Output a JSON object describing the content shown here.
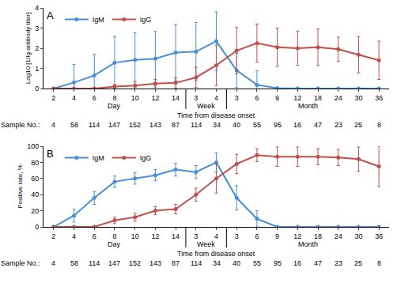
{
  "chart_data": [
    {
      "type": "line",
      "title": "A",
      "categories": [
        "2",
        "4",
        "6",
        "8",
        "10",
        "12",
        "14",
        "3",
        "4",
        "3",
        "6",
        "9",
        "12",
        "18",
        "24",
        "30",
        "36"
      ],
      "category_groups": [
        "Day",
        "Day",
        "Day",
        "Day",
        "Day",
        "Day",
        "Day",
        "Week",
        "Week",
        "Month",
        "Month",
        "Month",
        "Month",
        "Month",
        "Month",
        "Month",
        "Month"
      ],
      "x_label": "Time from disease onset",
      "y_label": "Log10 [1/Ig antibody titer]",
      "ylim": [
        0,
        4
      ],
      "yticks": [
        0,
        1,
        2,
        3,
        4
      ],
      "grid": false,
      "legend": "upper left",
      "marker": "circle",
      "line_style": "solid",
      "sample_label": "Sample No.:",
      "sample_sizes": [
        4,
        58,
        114,
        147,
        152,
        143,
        87,
        114,
        34,
        40,
        55,
        95,
        16,
        47,
        23,
        25,
        8
      ],
      "series": [
        {
          "name": "IgM",
          "color": "#4a8fd4",
          "values": [
            0,
            0.3,
            0.65,
            1.28,
            1.42,
            1.48,
            1.78,
            1.83,
            2.35,
            0.9,
            0.18,
            0.02,
            0,
            0,
            0,
            0,
            0
          ],
          "error": [
            0,
            0.9,
            1.05,
            1.3,
            1.35,
            1.35,
            1.4,
            1.45,
            1.45,
            0.85,
            0.7,
            0,
            0,
            0,
            0,
            0,
            0
          ]
        },
        {
          "name": "IgG",
          "color": "#c0504d",
          "values": [
            0,
            0,
            0,
            0.1,
            0.15,
            0.25,
            0.28,
            0.55,
            1.15,
            1.88,
            2.25,
            2.05,
            2.0,
            2.05,
            1.95,
            1.68,
            1.4
          ],
          "error": [
            0,
            0,
            0,
            0.1,
            0.2,
            0.2,
            0.25,
            0.5,
            1.0,
            1.15,
            0.95,
            0.95,
            0.85,
            0.9,
            0.6,
            0.9,
            0.95
          ]
        }
      ]
    },
    {
      "type": "line",
      "title": "B",
      "categories": [
        "2",
        "4",
        "6",
        "8",
        "10",
        "12",
        "14",
        "3",
        "4",
        "3",
        "6",
        "9",
        "12",
        "18",
        "24",
        "30",
        "36"
      ],
      "category_groups": [
        "Day",
        "Day",
        "Day",
        "Day",
        "Day",
        "Day",
        "Day",
        "Week",
        "Week",
        "Month",
        "Month",
        "Month",
        "Month",
        "Month",
        "Month",
        "Month",
        "Month"
      ],
      "x_label": "Time from disease onset",
      "y_label": "Positive rate, %",
      "ylim": [
        0,
        100
      ],
      "yticks": [
        0,
        20,
        40,
        60,
        80,
        100
      ],
      "grid": false,
      "legend": "upper left",
      "marker": "circle",
      "line_style": "solid",
      "sample_label": "Sample No.:",
      "sample_sizes": [
        4,
        58,
        114,
        147,
        152,
        143,
        87,
        114,
        34,
        40,
        55,
        95,
        16,
        47,
        23,
        25,
        8
      ],
      "series": [
        {
          "name": "IgM",
          "color": "#4a8fd4",
          "values": [
            0,
            14,
            36,
            56,
            60,
            64,
            71,
            68,
            80,
            36,
            10,
            0,
            0,
            0,
            0,
            0,
            0
          ],
          "error": [
            0,
            8,
            8,
            7,
            7,
            7,
            8,
            8,
            12,
            15,
            10,
            0,
            0,
            0,
            0,
            0,
            0
          ]
        },
        {
          "name": "IgG",
          "color": "#c0504d",
          "values": [
            0,
            0,
            0,
            8,
            12,
            20,
            22,
            40,
            60,
            78,
            89,
            87,
            87,
            87,
            86,
            84,
            75
          ],
          "error": [
            0,
            0,
            0,
            4,
            5,
            5,
            6,
            8,
            18,
            12,
            8,
            12,
            12,
            10,
            10,
            15,
            25
          ]
        }
      ]
    }
  ]
}
